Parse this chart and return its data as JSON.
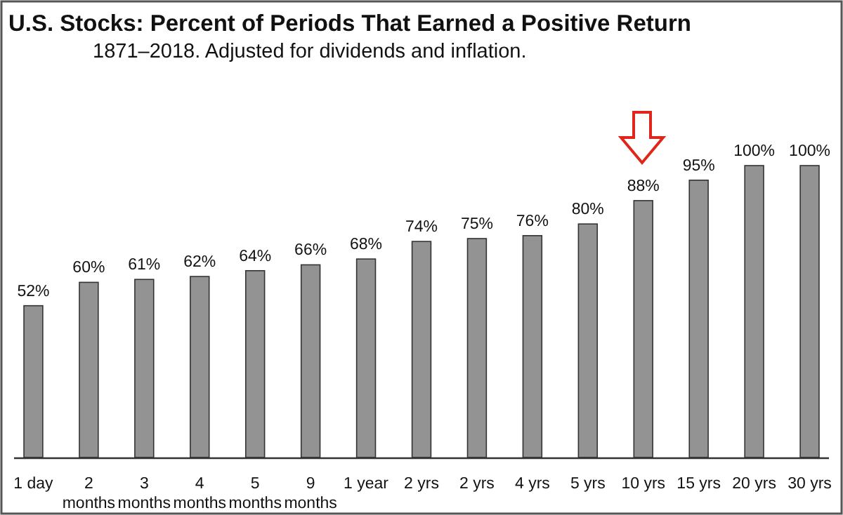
{
  "chart_data": {
    "type": "bar",
    "title": "U.S. Stocks: Percent of Periods That Earned a Positive Return",
    "subtitle": "1871–2018. Adjusted for dividends and inflation.",
    "categories": [
      "1 day",
      "2 months",
      "3 months",
      "4 months",
      "5 months",
      "9 months",
      "1 year",
      "2 yrs",
      "2 yrs",
      "4 yrs",
      "5 yrs",
      "10 yrs",
      "15 yrs",
      "20 yrs",
      "30 yrs"
    ],
    "values": [
      52,
      60,
      61,
      62,
      64,
      66,
      68,
      74,
      75,
      76,
      80,
      88,
      95,
      100,
      100
    ],
    "value_labels": [
      "52%",
      "60%",
      "61%",
      "62%",
      "64%",
      "66%",
      "68%",
      "74%",
      "75%",
      "76%",
      "80%",
      "88%",
      "95%",
      "100%",
      "100%"
    ],
    "color": "#939393"
  }
}
